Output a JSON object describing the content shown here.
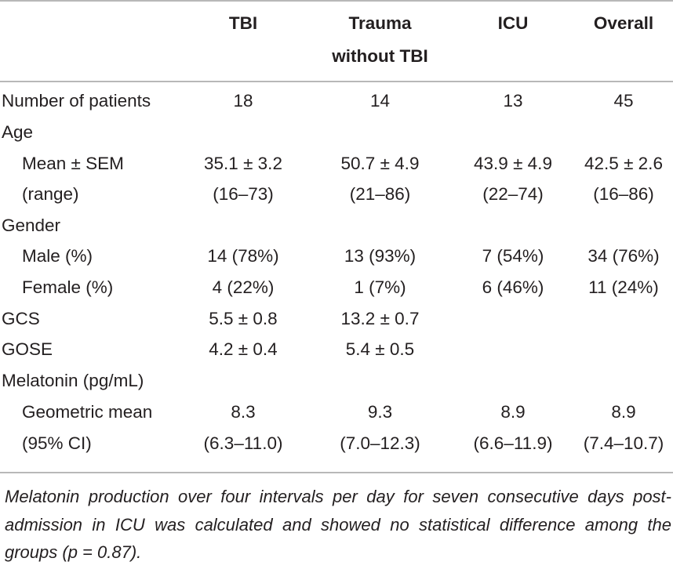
{
  "headers": {
    "col1": "TBI",
    "col2_line1": "Trauma",
    "col2_line2": "without TBI",
    "col3": "ICU",
    "col4": "Overall"
  },
  "rows": {
    "patients": {
      "label": "Number of patients",
      "tbi": "18",
      "trauma": "14",
      "icu": "13",
      "overall": "45"
    },
    "age": {
      "label": "Age"
    },
    "age_mean": {
      "label": "Mean ± SEM",
      "tbi": "35.1 ± 3.2",
      "trauma": "50.7 ± 4.9",
      "icu": "43.9 ± 4.9",
      "overall": "42.5 ± 2.6"
    },
    "age_range": {
      "label": "(range)",
      "tbi": "(16–73)",
      "trauma": "(21–86)",
      "icu": "(22–74)",
      "overall": "(16–86)"
    },
    "gender": {
      "label": "Gender"
    },
    "male": {
      "label": "Male (%)",
      "tbi": "14 (78%)",
      "trauma": "13 (93%)",
      "icu": "7 (54%)",
      "overall": "34 (76%)"
    },
    "female": {
      "label": "Female (%)",
      "tbi": "4 (22%)",
      "trauma": "1 (7%)",
      "icu": "6 (46%)",
      "overall": "11 (24%)"
    },
    "gcs": {
      "label": "GCS",
      "tbi": "5.5 ± 0.8",
      "trauma": "13.2 ± 0.7"
    },
    "gose": {
      "label": "GOSE",
      "tbi": "4.2 ± 0.4",
      "trauma": "5.4 ± 0.5"
    },
    "melatonin": {
      "label": "Melatonin (pg/mL)"
    },
    "geo_mean": {
      "label": "Geometric mean",
      "tbi": "8.3",
      "trauma": "9.3",
      "icu": "8.9",
      "overall": "8.9"
    },
    "ci": {
      "label": "(95% CI)",
      "tbi": "(6.3–11.0)",
      "trauma": "(7.0–12.3)",
      "icu": "(6.6–11.9)",
      "overall": "(7.4–10.7)"
    }
  },
  "footnote": "Melatonin production over four intervals per day for seven consecutive days post-admission in ICU was calculated and showed no statistical difference among the groups (p = 0.87)."
}
